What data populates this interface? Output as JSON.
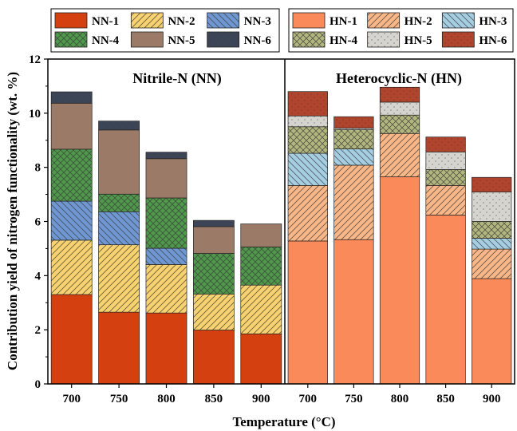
{
  "chart_data": {
    "type": "bar",
    "stacked": true,
    "ylabel": "Contribution yield of nitrogen functionality (wt. %)",
    "xlabel": "Temperature (°C)",
    "ylim": [
      0,
      12
    ],
    "yticks": [
      0,
      2,
      4,
      6,
      8,
      10,
      12
    ],
    "grid": false,
    "panels": [
      {
        "title": "Nitrile-N (NN)",
        "categories": [
          "700",
          "750",
          "800",
          "850",
          "900"
        ],
        "series": [
          {
            "name": "NN-1",
            "color": "#d4400f",
            "pattern": "solid",
            "values": [
              3.3,
              2.65,
              2.62,
              1.99,
              1.85
            ]
          },
          {
            "name": "NN-2",
            "color": "#f7d26e",
            "pattern": "diag-back",
            "values": [
              2.01,
              2.49,
              1.79,
              1.33,
              1.8
            ]
          },
          {
            "name": "NN-3",
            "color": "#6f98d2",
            "pattern": "diag-fwd",
            "values": [
              1.44,
              1.22,
              0.6,
              0.0,
              0.0
            ]
          },
          {
            "name": "NN-4",
            "color": "#4f9a4a",
            "pattern": "crosshatch",
            "values": [
              1.92,
              0.65,
              1.86,
              1.5,
              1.41
            ]
          },
          {
            "name": "NN-5",
            "color": "#9c7a68",
            "pattern": "solid",
            "values": [
              1.7,
              2.37,
              1.45,
              0.99,
              0.85
            ]
          },
          {
            "name": "NN-6",
            "color": "#3c4556",
            "pattern": "dots",
            "values": [
              0.42,
              0.33,
              0.24,
              0.23,
              0.0
            ]
          }
        ]
      },
      {
        "title": "Heterocyclic-N (HN)",
        "categories": [
          "700",
          "750",
          "800",
          "850",
          "900"
        ],
        "series": [
          {
            "name": "HN-1",
            "color": "#fb8a5a",
            "pattern": "solid",
            "values": [
              5.28,
              5.33,
              7.65,
              6.24,
              3.89
            ]
          },
          {
            "name": "HN-2",
            "color": "#f9b686",
            "pattern": "diag-back",
            "values": [
              2.05,
              2.75,
              1.6,
              1.09,
              1.09
            ]
          },
          {
            "name": "HN-3",
            "color": "#a5cee3",
            "pattern": "diag-fwd",
            "values": [
              1.19,
              0.6,
              0.0,
              0.0,
              0.4
            ]
          },
          {
            "name": "HN-4",
            "color": "#b3b77e",
            "pattern": "crosshatch",
            "values": [
              0.98,
              0.71,
              0.68,
              0.59,
              0.62
            ]
          },
          {
            "name": "HN-5",
            "color": "#d6d4cf",
            "pattern": "dots",
            "values": [
              0.4,
              0.06,
              0.48,
              0.65,
              1.09
            ]
          },
          {
            "name": "HN-6",
            "color": "#b0442c",
            "pattern": "dots",
            "values": [
              0.9,
              0.42,
              0.55,
              0.55,
              0.54
            ]
          }
        ]
      }
    ]
  }
}
